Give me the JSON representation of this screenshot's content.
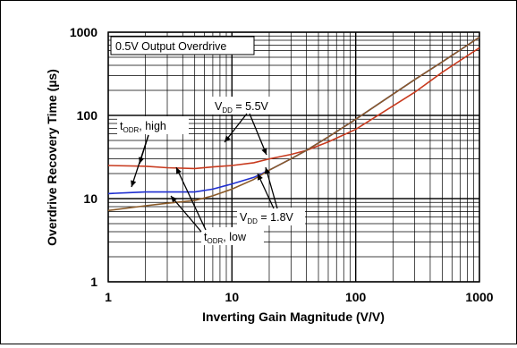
{
  "chart_data": {
    "type": "line",
    "xlabel": "Inverting Gain Magnitude (V/V)",
    "ylabel": "Overdrive Recovery Time (µs)",
    "x_scale": "log",
    "y_scale": "log",
    "xlim": [
      1,
      1000
    ],
    "ylim": [
      1,
      1000
    ],
    "x_ticks": [
      "1",
      "10",
      "100",
      "1000"
    ],
    "y_ticks": [
      "1",
      "10",
      "100",
      "1000"
    ],
    "grid": true,
    "series": [
      {
        "color": "#c83a1e",
        "points": [
          [
            1,
            25
          ],
          [
            2,
            24.5
          ],
          [
            3,
            23.5
          ],
          [
            5,
            23
          ],
          [
            7,
            24
          ],
          [
            10,
            25
          ],
          [
            15,
            27
          ],
          [
            20,
            30
          ],
          [
            30,
            34
          ],
          [
            40,
            38
          ],
          [
            60,
            48
          ],
          [
            100,
            68
          ],
          [
            200,
            130
          ],
          [
            300,
            190
          ],
          [
            500,
            330
          ],
          [
            1000,
            650
          ]
        ]
      },
      {
        "color": "#1f2fd0",
        "points": [
          [
            1,
            11.5
          ],
          [
            1.5,
            11.8
          ],
          [
            2,
            12
          ],
          [
            3,
            12
          ],
          [
            5,
            12
          ],
          [
            7,
            13
          ],
          [
            10,
            15
          ],
          [
            15,
            18
          ],
          [
            20,
            22
          ],
          [
            30,
            30
          ],
          [
            40,
            38
          ],
          [
            60,
            55
          ],
          [
            100,
            90
          ],
          [
            200,
            180
          ],
          [
            300,
            270
          ],
          [
            500,
            440
          ],
          [
            1000,
            870
          ]
        ]
      },
      {
        "color": "#8a5a28",
        "points": [
          [
            1,
            7.2
          ],
          [
            2,
            8.2
          ],
          [
            3,
            8.8
          ],
          [
            5,
            9.5
          ],
          [
            7,
            10.8
          ],
          [
            10,
            13
          ],
          [
            15,
            17
          ],
          [
            20,
            22
          ],
          [
            30,
            30
          ],
          [
            40,
            38
          ],
          [
            60,
            55
          ],
          [
            100,
            90
          ],
          [
            200,
            180
          ],
          [
            300,
            270
          ],
          [
            500,
            440
          ],
          [
            1000,
            870
          ]
        ]
      }
    ],
    "annotations": {
      "box": "0.5V Output Overdrive",
      "high_main": "t",
      "high_sub": "ODR",
      "high_tail": ", high",
      "low_main": "t",
      "low_sub": "ODR",
      "low_tail": ", low",
      "vdd55_main": "V",
      "vdd55_sub": "DD",
      "vdd55_tail": " = 5.5V",
      "vdd18_main": "V",
      "vdd18_sub": "DD",
      "vdd18_tail": " = 1.8V"
    }
  }
}
